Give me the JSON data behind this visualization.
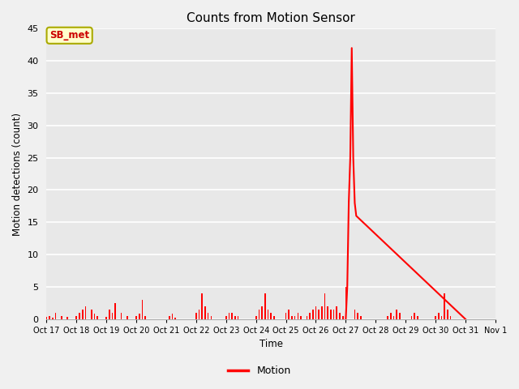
{
  "title": "Counts from Motion Sensor",
  "ylabel": "Motion detections (count)",
  "xlabel": "Time",
  "legend_label": "Motion",
  "line_color": "#FF0000",
  "plot_bg_color": "#E8E8E8",
  "fig_bg_color": "#F0F0F0",
  "annotation_label": "SB_met",
  "annotation_bg": "#FFFFCC",
  "annotation_border": "#AAAA00",
  "annotation_text_color": "#CC0000",
  "ylim": [
    0,
    45
  ],
  "yticks": [
    0,
    5,
    10,
    15,
    20,
    25,
    30,
    35,
    40,
    45
  ],
  "xlim": [
    17,
    32
  ],
  "xtick_positions": [
    17,
    18,
    19,
    20,
    21,
    22,
    23,
    24,
    25,
    26,
    27,
    28,
    29,
    30,
    31,
    32
  ],
  "xtick_labels": [
    "Oct 17",
    "Oct 18",
    "Oct 19",
    "Oct 20",
    "Oct 21",
    "Oct 22",
    "Oct 23",
    "Oct 24",
    "Oct 25",
    "Oct 26",
    "Oct 27",
    "Oct 28",
    "Oct 29",
    "Oct 30",
    "Oct 31",
    "Nov 1"
  ],
  "bar_data": [
    [
      17.0,
      0.3
    ],
    [
      17.1,
      0.5
    ],
    [
      17.2,
      0.2
    ],
    [
      17.3,
      1.0
    ],
    [
      17.5,
      0.5
    ],
    [
      17.7,
      0.3
    ],
    [
      18.0,
      0.5
    ],
    [
      18.1,
      1.0
    ],
    [
      18.2,
      1.5
    ],
    [
      18.3,
      2.0
    ],
    [
      18.5,
      1.5
    ],
    [
      18.6,
      0.8
    ],
    [
      18.7,
      0.5
    ],
    [
      19.0,
      0.3
    ],
    [
      19.1,
      1.5
    ],
    [
      19.2,
      1.0
    ],
    [
      19.3,
      2.5
    ],
    [
      19.5,
      1.0
    ],
    [
      19.7,
      0.5
    ],
    [
      20.0,
      0.5
    ],
    [
      20.1,
      0.8
    ],
    [
      20.2,
      3.0
    ],
    [
      20.3,
      0.5
    ],
    [
      21.1,
      0.5
    ],
    [
      21.2,
      0.8
    ],
    [
      21.3,
      0.2
    ],
    [
      22.0,
      1.0
    ],
    [
      22.1,
      1.5
    ],
    [
      22.2,
      4.0
    ],
    [
      22.3,
      2.0
    ],
    [
      22.4,
      1.0
    ],
    [
      22.5,
      0.5
    ],
    [
      23.0,
      0.5
    ],
    [
      23.1,
      1.0
    ],
    [
      23.2,
      1.0
    ],
    [
      23.3,
      0.5
    ],
    [
      23.4,
      0.5
    ],
    [
      24.0,
      0.5
    ],
    [
      24.1,
      1.5
    ],
    [
      24.2,
      2.0
    ],
    [
      24.3,
      4.0
    ],
    [
      24.4,
      1.5
    ],
    [
      24.5,
      1.0
    ],
    [
      24.6,
      0.5
    ],
    [
      25.0,
      1.0
    ],
    [
      25.1,
      1.5
    ],
    [
      25.2,
      0.5
    ],
    [
      25.3,
      0.5
    ],
    [
      25.4,
      1.0
    ],
    [
      25.5,
      0.5
    ],
    [
      25.7,
      0.5
    ],
    [
      25.8,
      1.0
    ],
    [
      25.9,
      1.5
    ],
    [
      26.0,
      2.0
    ],
    [
      26.1,
      1.5
    ],
    [
      26.2,
      2.0
    ],
    [
      26.3,
      4.0
    ],
    [
      26.4,
      2.0
    ],
    [
      26.5,
      1.5
    ],
    [
      26.6,
      1.5
    ],
    [
      26.7,
      2.0
    ],
    [
      26.8,
      1.0
    ],
    [
      26.9,
      0.5
    ],
    [
      27.0,
      5.0
    ],
    [
      27.3,
      1.5
    ],
    [
      27.4,
      1.0
    ],
    [
      27.5,
      0.5
    ],
    [
      28.4,
      0.5
    ],
    [
      28.5,
      1.0
    ],
    [
      28.6,
      0.5
    ],
    [
      28.7,
      1.5
    ],
    [
      28.8,
      1.0
    ],
    [
      29.2,
      0.5
    ],
    [
      29.3,
      1.0
    ],
    [
      29.4,
      0.5
    ],
    [
      30.0,
      0.5
    ],
    [
      30.1,
      1.0
    ],
    [
      30.2,
      0.5
    ],
    [
      30.3,
      4.0
    ],
    [
      30.4,
      1.5
    ],
    [
      30.5,
      0.5
    ]
  ],
  "line_data": [
    [
      27.0,
      0.0
    ],
    [
      27.05,
      5.0
    ],
    [
      27.1,
      18.0
    ],
    [
      27.15,
      25.0
    ],
    [
      27.2,
      42.0
    ],
    [
      27.25,
      25.0
    ],
    [
      27.3,
      18.0
    ],
    [
      27.35,
      16.0
    ],
    [
      31.0,
      0.0
    ]
  ]
}
